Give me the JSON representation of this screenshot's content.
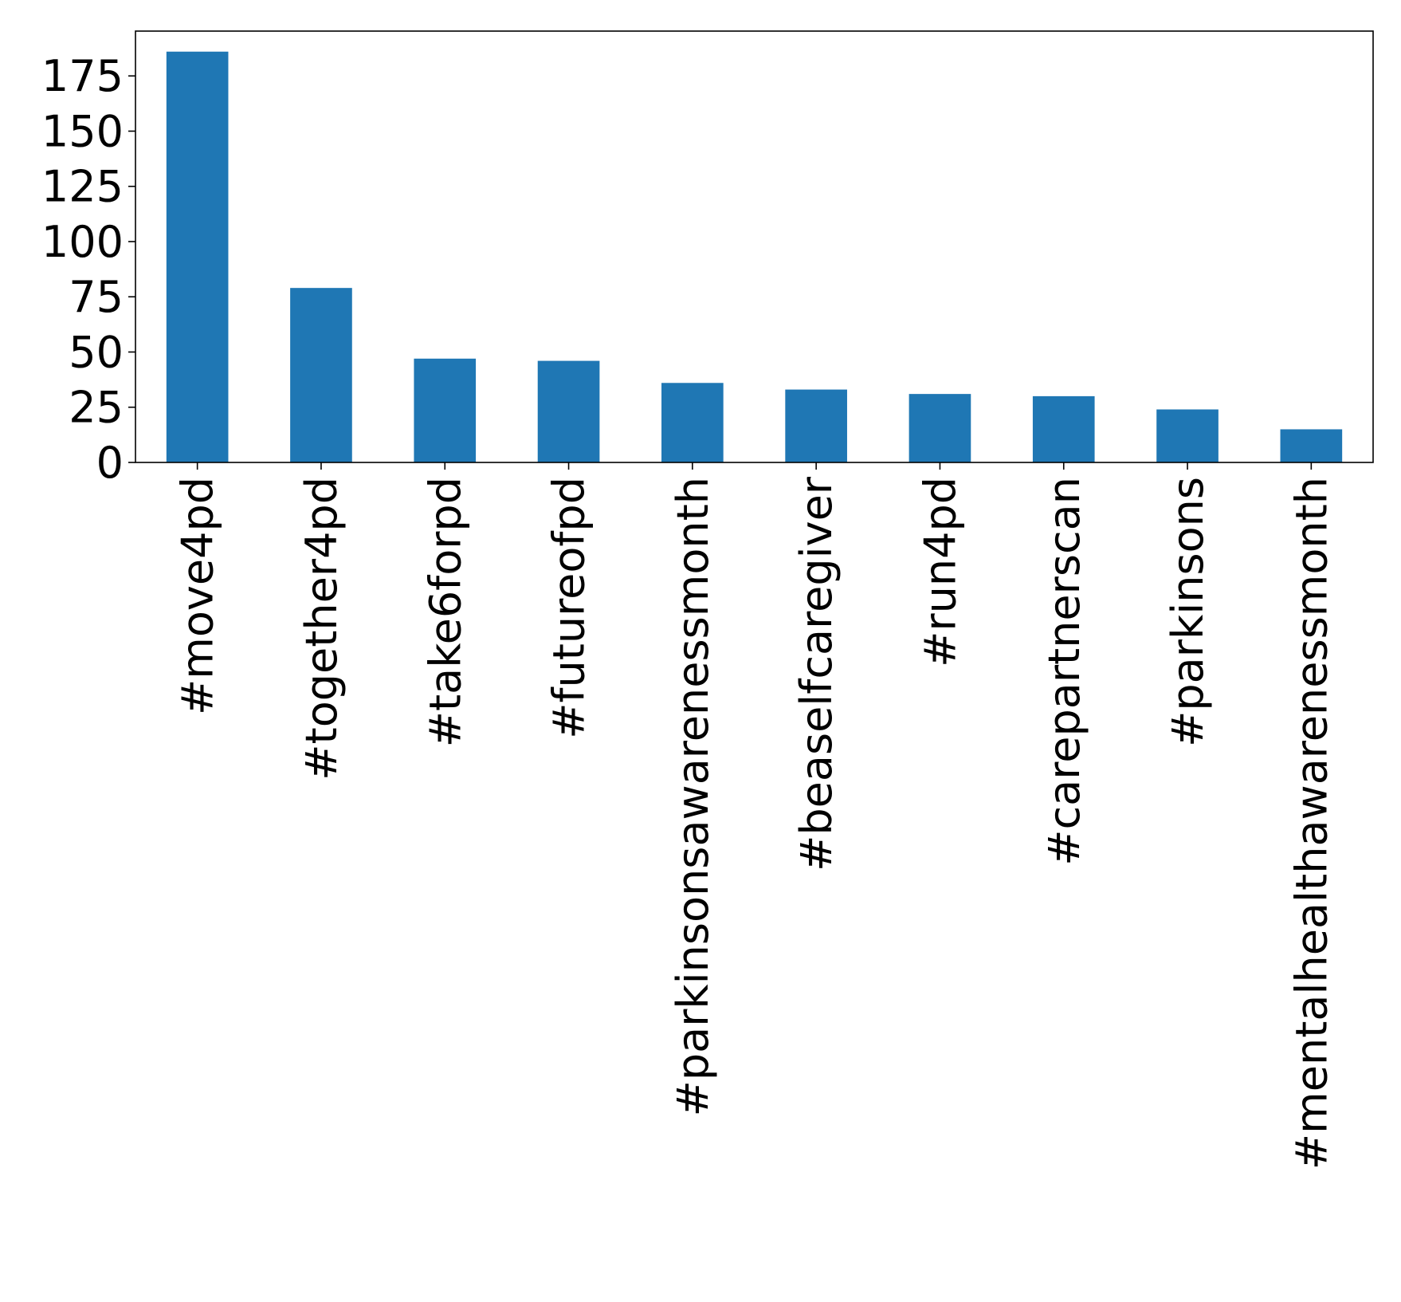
{
  "chart_data": {
    "type": "bar",
    "title": "",
    "xlabel": "",
    "ylabel": "",
    "categories": [
      "#move4pd",
      "#together4pd",
      "#take6forpd",
      "#futureofpd",
      "#parkinsonsawarenessmonth",
      "#beaselfcaregiver",
      "#run4pd",
      "#carepartnerscan",
      "#parkinsons",
      "#mentalhealthawarenessmonth"
    ],
    "values": [
      186,
      79,
      47,
      46,
      36,
      33,
      31,
      30,
      24,
      15
    ],
    "ylim": [
      0,
      195.3
    ],
    "yticks": [
      0,
      25,
      50,
      75,
      100,
      125,
      150,
      175
    ],
    "grid": false,
    "legend": "none",
    "bar_color": "#1f77b4"
  }
}
